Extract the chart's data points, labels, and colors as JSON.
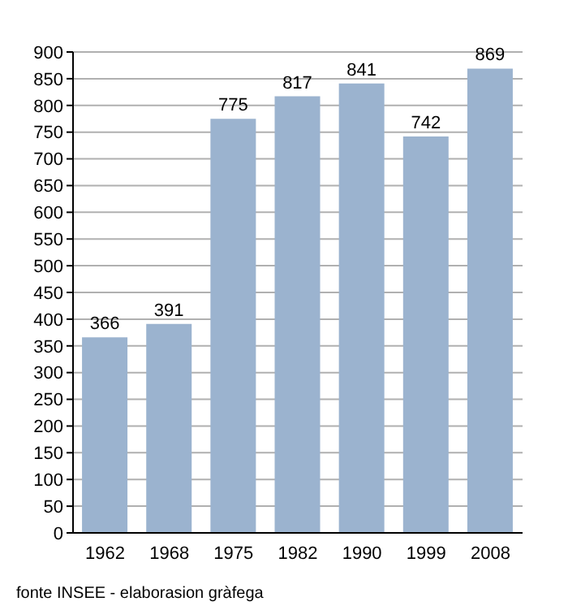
{
  "chart_data": {
    "type": "bar",
    "categories": [
      "1962",
      "1968",
      "1975",
      "1982",
      "1990",
      "1999",
      "2008"
    ],
    "values": [
      366,
      391,
      775,
      817,
      841,
      742,
      869
    ],
    "color": "#9bb3cf",
    "ylim": [
      0,
      900
    ],
    "yticks": [
      0,
      50,
      100,
      150,
      200,
      250,
      300,
      350,
      400,
      450,
      500,
      550,
      600,
      650,
      700,
      750,
      800,
      850,
      900
    ],
    "grid": "y",
    "data_labels": true,
    "legend": false,
    "annotations": [
      "fonte INSEE - elaborasion gràfega"
    ]
  }
}
